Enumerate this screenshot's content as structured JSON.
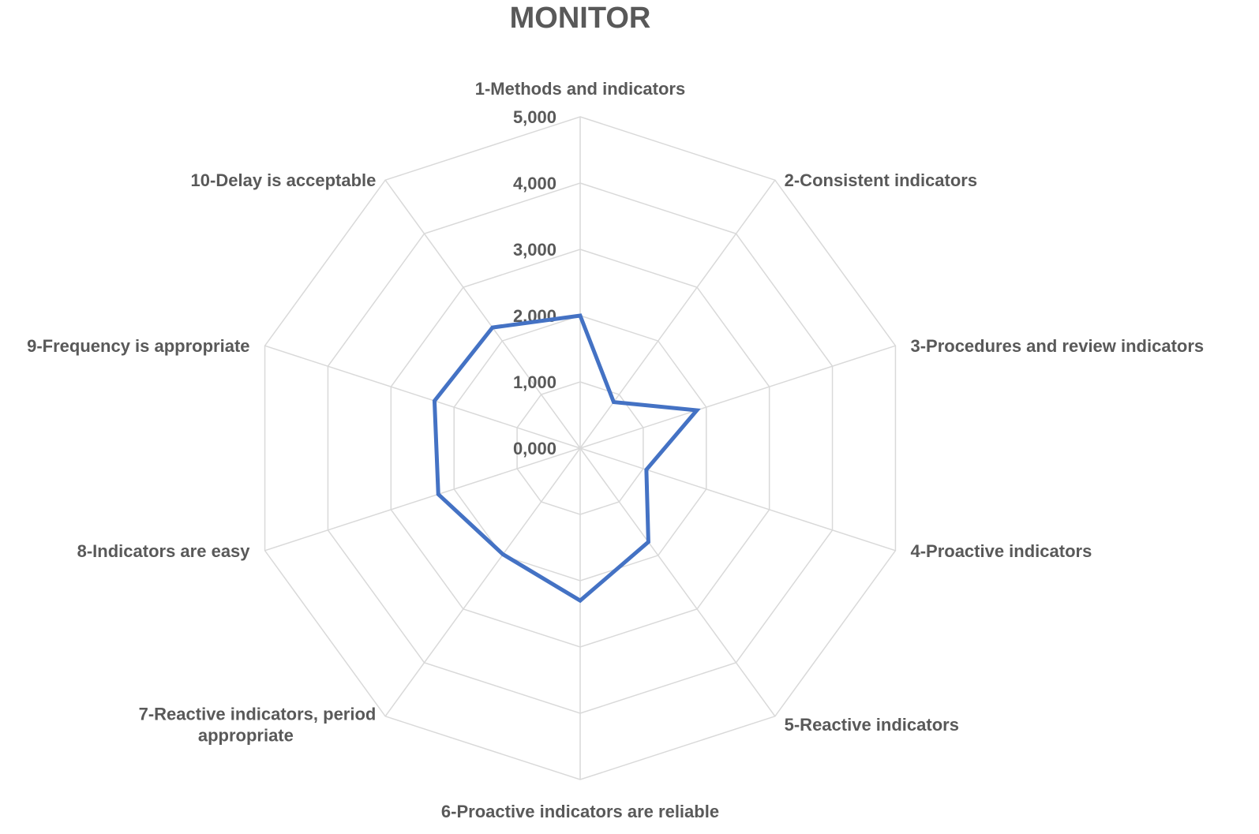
{
  "chart_data": {
    "type": "radar",
    "title": "MONITOR",
    "categories": [
      "1-Methods and indicators",
      "2-Consistent indicators",
      "3-Procedures and review indicators",
      "4-Proactive indicators",
      "5-Reactive indicators",
      "6-Proactive indicators are reliable",
      "7-Reactive indicators, period appropriate",
      "8-Indicators are easy",
      "9-Frequency is appropriate",
      "10-Delay is acceptable"
    ],
    "category_label_lines": [
      [
        "1-Methods and indicators"
      ],
      [
        "2-Consistent indicators"
      ],
      [
        "3-Procedures and review indicators"
      ],
      [
        "4-Proactive indicators"
      ],
      [
        "5-Reactive indicators"
      ],
      [
        "6-Proactive indicators are reliable"
      ],
      [
        "7-Reactive indicators, period",
        "appropriate"
      ],
      [
        "8-Indicators are easy"
      ],
      [
        "9-Frequency is appropriate"
      ],
      [
        "10-Delay is acceptable"
      ]
    ],
    "series": [
      {
        "values": [
          2.0,
          0.86,
          1.85,
          1.05,
          1.75,
          2.3,
          1.98,
          2.25,
          2.31,
          2.25
        ]
      }
    ],
    "rlim": [
      0,
      5
    ],
    "ticks": [
      0,
      1,
      2,
      3,
      4,
      5
    ],
    "tick_labels": [
      "0,000",
      "1,000",
      "2,000",
      "3,000",
      "4,000",
      "5,000"
    ],
    "grid": true,
    "legend": "none",
    "colors": {
      "series": "#4472C4",
      "grid": "#D9D9D9",
      "text": "#595959"
    }
  }
}
